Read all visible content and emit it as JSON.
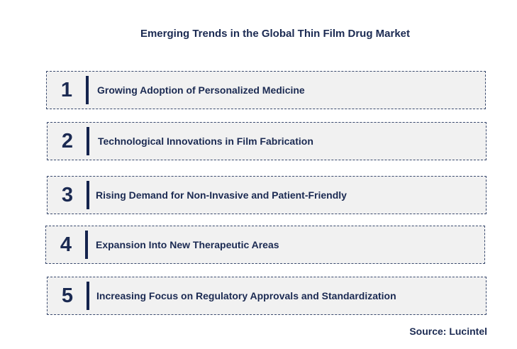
{
  "title": "Emerging Trends in the Global Thin Film Drug Market",
  "trends": [
    {
      "number": "1",
      "label": "Growing Adoption of Personalized Medicine"
    },
    {
      "number": "2",
      "label": "Technological Innovations in Film Fabrication"
    },
    {
      "number": "3",
      "label": "Rising Demand for Non-Invasive and Patient-Friendly"
    },
    {
      "number": "4",
      "label": "Expansion Into New Therapeutic Areas"
    },
    {
      "number": "5",
      "label": "Increasing Focus on Regulatory Approvals and Standardization"
    }
  ],
  "source": "Source: Lucintel",
  "colors": {
    "text": "#1b2a52",
    "box_fill": "#f1f1f1",
    "accent_bar": "#14234d"
  }
}
